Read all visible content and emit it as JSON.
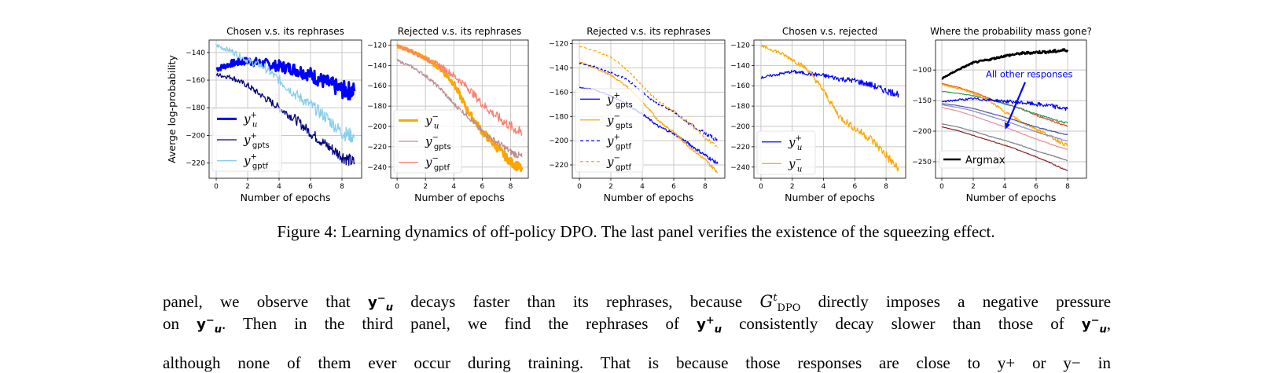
{
  "figure": {
    "caption": "Figure 4: Learning dynamics of off-policy DPO. The last panel verifies the existence of the squeezing effect."
  },
  "chart_data": [
    {
      "type": "line",
      "title": "Chosen v.s. its rephrases",
      "xlabel": "Number of epochs",
      "ylabel": "Averge log-probability",
      "xticks": [
        "0",
        "2",
        "4",
        "6",
        "8"
      ],
      "yticks": [
        -140,
        -160,
        -180,
        -200,
        -220
      ],
      "ylim": [
        -231,
        -131
      ],
      "grid": true,
      "legend_position": "lower-left",
      "x": [
        0,
        1,
        2,
        3,
        4,
        5,
        6,
        7,
        8,
        8.8
      ],
      "series": [
        {
          "name": "y",
          "sup": "+",
          "sub": "u",
          "color": "#0000ff",
          "width": 3,
          "dash": "",
          "values": [
            -152,
            -148,
            -146,
            -148,
            -150,
            -152,
            -156,
            -162,
            -167,
            -168
          ]
        },
        {
          "name": "y",
          "sup": "+",
          "sub": "gpts",
          "color": "#000080",
          "width": 1.3,
          "dash": "",
          "values": [
            -156,
            -158,
            -164,
            -172,
            -180,
            -188,
            -198,
            -207,
            -215,
            -220
          ]
        },
        {
          "name": "y",
          "sup": "+",
          "sub": "gptf",
          "color": "#87ceeb",
          "width": 1.3,
          "dash": "",
          "values": [
            -135,
            -139,
            -146,
            -150,
            -160,
            -170,
            -178,
            -187,
            -198,
            -201
          ]
        }
      ]
    },
    {
      "type": "line",
      "title": "Rejected v.s. its rephrases",
      "xlabel": "Number of epochs",
      "ylabel": "",
      "xticks": [
        "0",
        "2",
        "4",
        "6",
        "8"
      ],
      "yticks": [
        -120,
        -140,
        -160,
        -180,
        -200,
        -220,
        -240
      ],
      "ylim": [
        -251,
        -115
      ],
      "grid": true,
      "legend_position": "lower-left",
      "x": [
        0,
        1,
        2,
        3,
        4,
        5,
        6,
        7,
        8,
        8.8
      ],
      "series": [
        {
          "name": "y",
          "sup": "−",
          "sub": "u",
          "color": "#ffa500",
          "width": 3,
          "dash": "",
          "values": [
            -121,
            -126,
            -133,
            -142,
            -158,
            -185,
            -205,
            -220,
            -235,
            -242
          ]
        },
        {
          "name": "y",
          "sup": "−",
          "sub": "gpts",
          "color": "#bc8f8f",
          "width": 1.3,
          "dash": "",
          "values": [
            -135,
            -141,
            -150,
            -162,
            -178,
            -190,
            -205,
            -215,
            -225,
            -230
          ]
        },
        {
          "name": "y",
          "sup": "−",
          "sub": "gptf",
          "color": "#fa8072",
          "width": 1.3,
          "dash": "",
          "values": [
            -121,
            -126,
            -133,
            -140,
            -150,
            -162,
            -178,
            -190,
            -200,
            -207
          ]
        }
      ]
    },
    {
      "type": "line",
      "title": "Rejected v.s. its rephrases",
      "xlabel": "Number of epochs",
      "ylabel": "",
      "xticks": [
        "0",
        "2",
        "4",
        "6",
        "8"
      ],
      "yticks": [
        -120,
        -140,
        -160,
        -180,
        -200,
        -220
      ],
      "ylim": [
        -231,
        -117
      ],
      "grid": true,
      "legend_position": "lower-left",
      "x": [
        0,
        1,
        2,
        3,
        4,
        5,
        6,
        7,
        8,
        8.8
      ],
      "series": [
        {
          "name": "y",
          "sup": "+",
          "sub": "gpts",
          "color": "#0000ff",
          "width": 1.2,
          "dash": "",
          "values": [
            -156,
            -158,
            -163,
            -170,
            -178,
            -188,
            -194,
            -203,
            -212,
            -219
          ]
        },
        {
          "name": "y",
          "sup": "−",
          "sub": "gpts",
          "color": "#ffa500",
          "width": 1.2,
          "dash": "",
          "values": [
            -135,
            -140,
            -146,
            -155,
            -168,
            -183,
            -193,
            -205,
            -216,
            -226
          ]
        },
        {
          "name": "y",
          "sup": "+",
          "sub": "gptf",
          "color": "#0000ff",
          "width": 1.2,
          "dash": "4,3",
          "values": [
            -136,
            -139,
            -144,
            -149,
            -160,
            -170,
            -176,
            -186,
            -194,
            -200
          ]
        },
        {
          "name": "y",
          "sup": "−",
          "sub": "gptf",
          "color": "#ffa500",
          "width": 1.2,
          "dash": "4,3",
          "values": [
            -122,
            -126,
            -131,
            -141,
            -155,
            -167,
            -176,
            -186,
            -198,
            -205
          ]
        }
      ]
    },
    {
      "type": "line",
      "title": "Chosen v.s. rejected",
      "xlabel": "Number of epochs",
      "ylabel": "",
      "xticks": [
        "0",
        "2",
        "4",
        "6",
        "8"
      ],
      "yticks": [
        -120,
        -140,
        -160,
        -180,
        -200,
        -220,
        -240
      ],
      "ylim": [
        -251,
        -115
      ],
      "grid": true,
      "legend_position": "lower-left",
      "x": [
        0,
        1,
        2,
        3,
        4,
        5,
        6,
        7,
        8,
        8.8
      ],
      "series": [
        {
          "name": "y",
          "sup": "+",
          "sub": "u",
          "color": "#0000ff",
          "width": 1.2,
          "dash": "",
          "values": [
            -152,
            -149,
            -146,
            -148,
            -150,
            -153,
            -155,
            -159,
            -165,
            -168
          ]
        },
        {
          "name": "y",
          "sup": "−",
          "sub": "u",
          "color": "#ffa500",
          "width": 1.2,
          "dash": "",
          "values": [
            -121,
            -126,
            -134,
            -144,
            -165,
            -190,
            -202,
            -212,
            -228,
            -243
          ]
        }
      ]
    },
    {
      "type": "line",
      "title": "Where the probability mass gone?",
      "xlabel": "Number of epochs",
      "ylabel": "",
      "xticks": [
        "0",
        "2",
        "4",
        "6",
        "8"
      ],
      "yticks": [
        -100,
        -150,
        -200,
        -250
      ],
      "ylim": [
        -277,
        -51
      ],
      "grid": true,
      "legend_position": "lower-left",
      "annotation": {
        "text": "All other responses",
        "color": "#0000ff"
      },
      "x": [
        0,
        1,
        2,
        3,
        4,
        5,
        6,
        7,
        8
      ],
      "series": [
        {
          "name": "Argmax",
          "color": "#000000",
          "width": 2.6,
          "dash": "",
          "values": [
            -114,
            -100,
            -88,
            -83,
            -77,
            -73,
            -71,
            -70,
            -67
          ]
        },
        {
          "name": "",
          "color": "#e2542a",
          "width": 1.2,
          "dash": "",
          "values": [
            -122,
            -128,
            -136,
            -146,
            -155,
            -163,
            -174,
            -183,
            -192
          ]
        },
        {
          "name": "",
          "color": "#2e9a5a",
          "width": 1.2,
          "dash": "",
          "values": [
            -135,
            -138,
            -142,
            -148,
            -155,
            -163,
            -172,
            -180,
            -187
          ]
        },
        {
          "name": "",
          "color": "#ffa500",
          "width": 1.2,
          "dash": "",
          "values": [
            -124,
            -130,
            -138,
            -150,
            -168,
            -184,
            -196,
            -210,
            -224
          ]
        },
        {
          "name": "",
          "color": "#0000ff",
          "width": 1.2,
          "dash": "",
          "values": [
            -152,
            -149,
            -147,
            -149,
            -151,
            -153,
            -156,
            -159,
            -164
          ]
        },
        {
          "name": "",
          "color": "#4b5aa8",
          "width": 1.2,
          "dash": "",
          "values": [
            -155,
            -158,
            -163,
            -170,
            -177,
            -185,
            -193,
            -200,
            -206
          ]
        },
        {
          "name": "",
          "color": "#8a88c8",
          "width": 1.2,
          "dash": "",
          "values": [
            -157,
            -161,
            -167,
            -175,
            -183,
            -192,
            -201,
            -209,
            -216
          ]
        },
        {
          "name": "",
          "color": "#e8909a",
          "width": 1.2,
          "dash": "",
          "values": [
            -161,
            -167,
            -175,
            -184,
            -193,
            -203,
            -213,
            -222,
            -230
          ]
        },
        {
          "name": "",
          "color": "#808080",
          "width": 1.2,
          "dash": "",
          "values": [
            -188,
            -193,
            -200,
            -208,
            -215,
            -223,
            -232,
            -240,
            -248
          ]
        },
        {
          "name": "",
          "color": "#8b2323",
          "width": 1.2,
          "dash": "",
          "values": [
            -193,
            -199,
            -207,
            -215,
            -223,
            -232,
            -242,
            -253,
            -265
          ]
        }
      ]
    }
  ],
  "body": {
    "line1": {
      "a": "panel, we observe that",
      "y": "y",
      "sup": "−",
      "sub": "u",
      "b": "decays faster than its rephrases, because",
      "g": "G",
      "gsup": "t",
      "gsub": "DPO",
      "c": "directly imposes a negative pressure"
    },
    "line2": {
      "a": "on",
      "y": "y",
      "sup": "−",
      "sub": "u",
      "b": ". Then in the third panel, we find the rephrases of",
      "y2": "y",
      "sup2": "+",
      "sub2": "u",
      "c": "consistently decay slower than those of",
      "y3": "y",
      "sup3": "−",
      "sub3": "u",
      "d": ","
    },
    "line3": "although none of them ever occur during training. That is because those responses are close to y+ or y− in"
  }
}
